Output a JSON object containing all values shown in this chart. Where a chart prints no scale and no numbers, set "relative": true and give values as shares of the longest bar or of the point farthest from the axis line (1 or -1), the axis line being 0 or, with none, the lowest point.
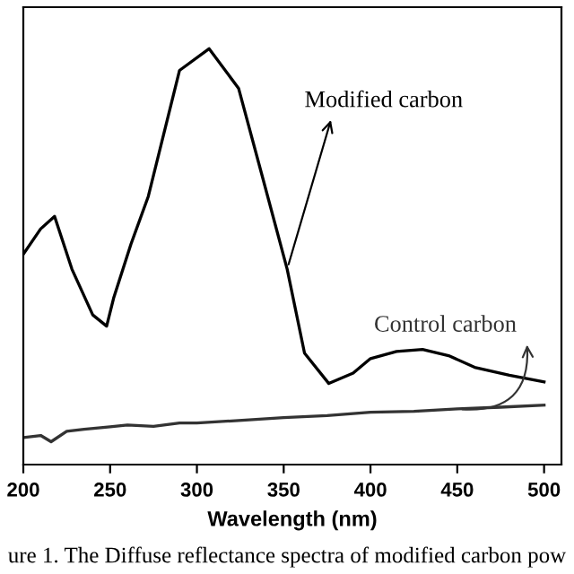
{
  "chart_data": {
    "type": "line",
    "relative": true,
    "xlabel": "Wavelength (nm)",
    "xlim": [
      200,
      510
    ],
    "xticks": [
      200,
      250,
      300,
      350,
      400,
      450,
      500
    ],
    "grid": false,
    "legend": false,
    "marker": "none",
    "line_style": "solid",
    "series": [
      {
        "name": "Modified carbon",
        "color": "#000000",
        "x": [
          200,
          210,
          218,
          228,
          240,
          248,
          252,
          262,
          272,
          290,
          307,
          324,
          338,
          352,
          362,
          376,
          390,
          400,
          415,
          430,
          445,
          460,
          480,
          500
        ],
        "values": [
          0.506,
          0.567,
          0.597,
          0.47,
          0.36,
          0.333,
          0.4,
          0.53,
          0.645,
          0.948,
          1.0,
          0.905,
          0.688,
          0.47,
          0.268,
          0.195,
          0.22,
          0.255,
          0.272,
          0.277,
          0.262,
          0.234,
          0.215,
          0.199
        ]
      },
      {
        "name": "Control carbon",
        "color": "#333333",
        "x": [
          200,
          210,
          216,
          225,
          235,
          250,
          260,
          275,
          290,
          300,
          320,
          350,
          375,
          400,
          425,
          450,
          475,
          500
        ],
        "values": [
          0.065,
          0.07,
          0.055,
          0.08,
          0.085,
          0.091,
          0.095,
          0.092,
          0.1,
          0.1,
          0.105,
          0.113,
          0.118,
          0.126,
          0.128,
          0.134,
          0.138,
          0.143
        ]
      }
    ],
    "annotations": [
      "ure 1. The Diffuse reflectance spectra of modified carbon pow"
    ]
  }
}
